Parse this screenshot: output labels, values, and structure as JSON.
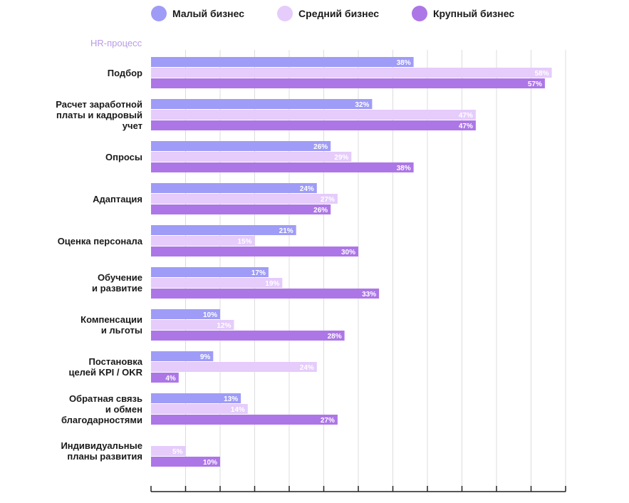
{
  "legend": {
    "items": [
      {
        "label": "Малый бизнес",
        "color": "#9f9cf7"
      },
      {
        "label": "Средний бизнес",
        "color": "#e5ccfb"
      },
      {
        "label": "Крупный бизнес",
        "color": "#ad76e6"
      }
    ]
  },
  "axis_title": "HR-процесс",
  "chart_data": {
    "type": "bar",
    "orientation": "horizontal",
    "title": "",
    "ylabel": "HR-процесс",
    "xlim": [
      0,
      60
    ],
    "grid": true,
    "categories": [
      "Подбор",
      "Расчет заработной\nплаты и кадровый\nучет",
      "Опросы",
      "Адаптация",
      "Оценка персонала",
      "Обучение\nи развитие",
      "Компенсации\nи льготы",
      "Постановка\nцелей KPI / OKR",
      "Обратная связь\nи обмен\nблагодарностями",
      "Индивидуальные\nпланы развития"
    ],
    "series": [
      {
        "name": "Малый бизнес",
        "color": "#9f9cf7",
        "values": [
          38,
          32,
          26,
          24,
          21,
          17,
          10,
          9,
          13,
          null
        ],
        "labels": [
          "38%",
          "32%",
          "26%",
          "24%",
          "21%",
          "17%",
          "10%",
          "9%",
          "13%",
          null
        ]
      },
      {
        "name": "Средний бизнес",
        "color": "#e5ccfb",
        "values": [
          58,
          47,
          29,
          27,
          15,
          19,
          12,
          24,
          14,
          5
        ],
        "labels": [
          "58%",
          "47%",
          "29%",
          "27%",
          "15%",
          "19%",
          "12%",
          "24%",
          "14%",
          "5%"
        ]
      },
      {
        "name": "Крупный бизнес",
        "color": "#ad76e6",
        "values": [
          57,
          47,
          38,
          26,
          30,
          33,
          28,
          4,
          27,
          10
        ],
        "labels": [
          "57%",
          "47%",
          "38%",
          "26%",
          "30%",
          "33%",
          "28%",
          "4%",
          "27%",
          "10%"
        ]
      }
    ]
  }
}
